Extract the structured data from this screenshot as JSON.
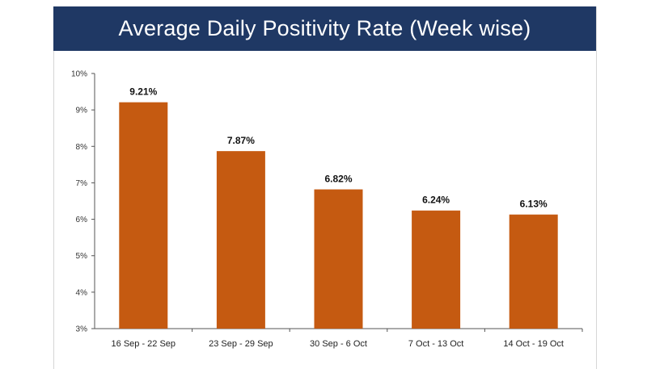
{
  "title": "Average Daily Positivity Rate (Week wise)",
  "colors": {
    "banner": "#1f3864",
    "bar": "#c55a11",
    "axis": "#555555"
  },
  "chart_data": {
    "type": "bar",
    "title": "Average Daily Positivity Rate (Week wise)",
    "categories": [
      "16 Sep - 22 Sep",
      "23 Sep - 29 Sep",
      "30 Sep - 6 Oct",
      "7 Oct - 13 Oct",
      "14 Oct - 19 Oct"
    ],
    "values": [
      9.21,
      7.87,
      6.82,
      6.24,
      6.13
    ],
    "data_labels": [
      "9.21%",
      "7.87%",
      "6.82%",
      "6.24%",
      "6.13%"
    ],
    "ylim": [
      3,
      10
    ],
    "yticks": [
      3,
      4,
      5,
      6,
      7,
      8,
      9,
      10
    ],
    "ytick_labels": [
      "3%",
      "4%",
      "5%",
      "6%",
      "7%",
      "8%",
      "9%",
      "10%"
    ],
    "xlabel": "",
    "ylabel": "",
    "grid": false,
    "legend": "none"
  }
}
